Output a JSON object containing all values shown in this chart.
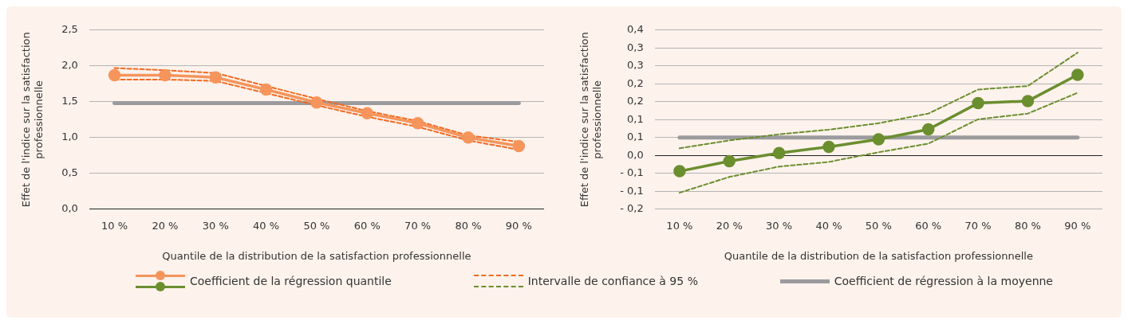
{
  "chart_data": [
    {
      "type": "line",
      "xlabel": "Quantile de la distribution de la satisfaction professionnelle",
      "ylabel": "Effet de l'indice sur la satisfaction professionnelle",
      "categories": [
        "10 %",
        "20 %",
        "30 %",
        "40 %",
        "50 %",
        "60 %",
        "70 %",
        "80 %",
        "90 %"
      ],
      "ylim": [
        0,
        2.5
      ],
      "yticks": [
        {
          "value": 0,
          "label": "0,0"
        },
        {
          "value": 0.5,
          "label": "0,5"
        },
        {
          "value": 1,
          "label": "1,0"
        },
        {
          "value": 1.5,
          "label": "1,5"
        },
        {
          "value": 2,
          "label": "2,0"
        },
        {
          "value": 2.5,
          "label": "2,5"
        }
      ],
      "grid": "y",
      "legend": "bottom",
      "series": [
        {
          "name": "Coefficient de régression à la moyenne",
          "color": "#9b9b9e",
          "marker": "none",
          "line_style": "solid",
          "values": [
            1.48,
            1.48,
            1.48,
            1.48,
            1.48,
            1.48,
            1.48,
            1.48,
            1.48
          ]
        },
        {
          "name": "Intervalle de confiance à 95 %",
          "color": "#f26a21",
          "marker": "none",
          "line_style": "dashed",
          "values": [
            1.97,
            1.94,
            1.9,
            1.72,
            1.54,
            1.37,
            1.23,
            1.03,
            0.94
          ]
        },
        {
          "color": "#f26a21",
          "marker": "none",
          "line_style": "dashed",
          "values": [
            1.81,
            1.81,
            1.79,
            1.62,
            1.45,
            1.29,
            1.15,
            0.96,
            0.83
          ]
        },
        {
          "name": "Coefficient de la régression quantile",
          "color": "#f5955c",
          "marker": "circle",
          "line_style": "solid",
          "values": [
            1.87,
            1.87,
            1.84,
            1.67,
            1.49,
            1.34,
            1.2,
            1.0,
            0.88
          ]
        }
      ]
    },
    {
      "type": "line",
      "xlabel": "Quantile de la distribution de la satisfaction professionnelle",
      "ylabel": "Effet de l'indice sur la satisfaction professionnelle",
      "categories": [
        "10 %",
        "20 %",
        "30 %",
        "40 %",
        "50 %",
        "60 %",
        "70 %",
        "80 %",
        "90 %"
      ],
      "ylim": [
        -0.15,
        0.35
      ],
      "yticks": [
        {
          "value": -0.15,
          "label": "- 0,2"
        },
        {
          "value": -0.1,
          "label": "- 0,1"
        },
        {
          "value": -0.05,
          "label": "- 0,1"
        },
        {
          "value": 0,
          "label": "0,0"
        },
        {
          "value": 0.05,
          "label": "0,1"
        },
        {
          "value": 0.1,
          "label": "0,1"
        },
        {
          "value": 0.15,
          "label": "0,2"
        },
        {
          "value": 0.2,
          "label": "0,2"
        },
        {
          "value": 0.25,
          "label": "0,3"
        },
        {
          "value": 0.3,
          "label": "0,3"
        },
        {
          "value": 0.35,
          "label": "0,4"
        }
      ],
      "grid": "y",
      "legend": "bottom",
      "series": [
        {
          "color": "#9b9b9e",
          "marker": "none",
          "line_style": "solid",
          "values": [
            0.05,
            0.05,
            0.05,
            0.05,
            0.05,
            0.05,
            0.05,
            0.05,
            0.05
          ]
        },
        {
          "color": "#6b8e2f",
          "marker": "none",
          "line_style": "dashed",
          "values": [
            0.02,
            0.042,
            0.059,
            0.072,
            0.09,
            0.117,
            0.184,
            0.194,
            0.287
          ]
        },
        {
          "color": "#6b8e2f",
          "marker": "none",
          "line_style": "dashed",
          "values": [
            -0.104,
            -0.06,
            -0.031,
            -0.018,
            0.009,
            0.033,
            0.101,
            0.117,
            0.175
          ]
        },
        {
          "color": "#6b8e2f",
          "marker": "circle",
          "line_style": "solid",
          "values": [
            -0.044,
            -0.016,
            0.007,
            0.024,
            0.045,
            0.073,
            0.146,
            0.152,
            0.225
          ]
        }
      ]
    }
  ]
}
